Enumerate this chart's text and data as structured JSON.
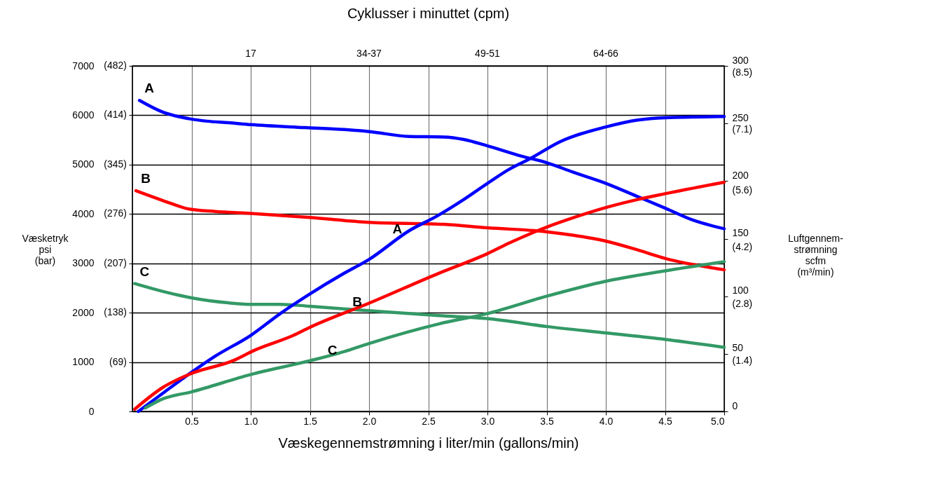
{
  "chart_data": {
    "type": "line",
    "x2label": "Cyklusser i minuttet (cpm)",
    "xlabel": "Væskegennemstrømning i liter/min (gallons/min)",
    "ylabel": "Væsketryk psi (bar)",
    "y2label": "Luftgennem-strømning scfm (m³/min)",
    "xlim": [
      0,
      5
    ],
    "xticks": [
      0.5,
      {
        "value": 1,
        "label": "1.0"
      },
      1.5,
      {
        "value": 2,
        "label": "2.0"
      },
      2.5,
      {
        "value": 3,
        "label": "3.0"
      },
      3.5,
      {
        "value": 4,
        "label": "4.0"
      },
      4.5,
      {
        "value": 5,
        "label": "5.0"
      }
    ],
    "ylim": [
      0,
      7000
    ],
    "yticks": [
      0,
      1000,
      2000,
      3000,
      4000,
      5000,
      6000,
      7000
    ],
    "annotations": [
      "(69)",
      "(138)",
      "(207)",
      "(276)",
      "(345)",
      "(414)",
      "(482)",
      "17",
      "34-37",
      "49-51",
      "64-66"
    ],
    "y2lim": [
      0,
      300
    ],
    "y2ticks": [
      0,
      50,
      100,
      150,
      200,
      250,
      300
    ],
    "y3lim": [
      0,
      8.5
    ],
    "y3ticks": [
      {
        "value": 1.4,
        "label": "(1.4)"
      },
      {
        "value": 2.8,
        "label": "(2.8)"
      },
      {
        "value": 4.2,
        "label": "(4.2)"
      },
      {
        "value": 5.6,
        "label": "(5.6)"
      },
      {
        "value": 7.1,
        "label": "(7.1)"
      },
      {
        "value": 8.5,
        "label": "(8.5)"
      }
    ],
    "grid": true,
    "series": [
      {
        "name": "A",
        "color": "#0000ff",
        "x": [
          0.06,
          0.26,
          0.48,
          0.63,
          0.81,
          1.0,
          1.46,
          1.79,
          2.0,
          2.34,
          2.63,
          2.8,
          3.0,
          3.29,
          3.5,
          3.72,
          4.0,
          4.27,
          4.5,
          4.73,
          5.0
        ],
        "values": [
          6300,
          6060,
          5930,
          5880,
          5850,
          5810,
          5750,
          5710,
          5670,
          5570,
          5560,
          5510,
          5380,
          5170,
          5040,
          4850,
          4620,
          4350,
          4120,
          3880,
          3700
        ]
      },
      {
        "name": "B",
        "color": "#ff0000",
        "x": [
          0.03,
          0.26,
          0.48,
          0.7,
          1.0,
          1.5,
          2.0,
          2.63,
          3.0,
          3.5,
          3.72,
          4.0,
          4.27,
          4.5,
          5.0
        ],
        "values": [
          4470,
          4270,
          4100,
          4050,
          4010,
          3930,
          3830,
          3790,
          3720,
          3640,
          3570,
          3450,
          3270,
          3100,
          2870
        ]
      },
      {
        "name": "C",
        "color": "#339966",
        "x": [
          0.02,
          0.26,
          0.5,
          0.81,
          1.0,
          1.25,
          1.5,
          2.0,
          2.59,
          3.0,
          3.5,
          4.0,
          4.5,
          5.0
        ],
        "values": [
          2590,
          2430,
          2300,
          2200,
          2170,
          2170,
          2130,
          2040,
          1940,
          1880,
          1720,
          1590,
          1460,
          1300
        ]
      },
      {
        "name": "A",
        "color": "#0000ff",
        "axis": "y2",
        "x": [
          0.05,
          0.26,
          0.5,
          0.7,
          1.0,
          1.25,
          1.5,
          1.79,
          2.0,
          2.34,
          2.58,
          2.8,
          3.0,
          3.18,
          3.37,
          3.61,
          4.0,
          4.27,
          4.5,
          5.0
        ],
        "values": [
          0,
          16,
          34,
          48,
          66,
          85,
          102,
          120,
          132,
          157,
          170,
          184,
          198,
          210,
          220,
          234,
          247,
          253,
          255,
          256
        ]
      },
      {
        "name": "B",
        "color": "#ff0000",
        "axis": "y2",
        "x": [
          0.02,
          0.26,
          0.5,
          0.85,
          1.03,
          1.36,
          1.5,
          2.0,
          2.59,
          3.0,
          3.18,
          3.5,
          3.72,
          4.0,
          4.27,
          4.5,
          5.0
        ],
        "values": [
          2,
          21,
          33,
          44,
          53,
          66,
          73,
          94,
          120,
          137,
          146,
          160,
          168,
          177,
          184,
          189,
          199
        ]
      },
      {
        "name": "C",
        "color": "#339966",
        "axis": "y2",
        "x": [
          0.11,
          0.26,
          0.5,
          1.0,
          1.5,
          1.79,
          2.0,
          2.59,
          3.0,
          3.5,
          4.0,
          4.5,
          5.0
        ],
        "values": [
          3,
          11,
          17,
          32,
          44,
          52,
          59,
          76,
          85,
          100,
          113,
          122,
          130
        ]
      }
    ]
  }
}
